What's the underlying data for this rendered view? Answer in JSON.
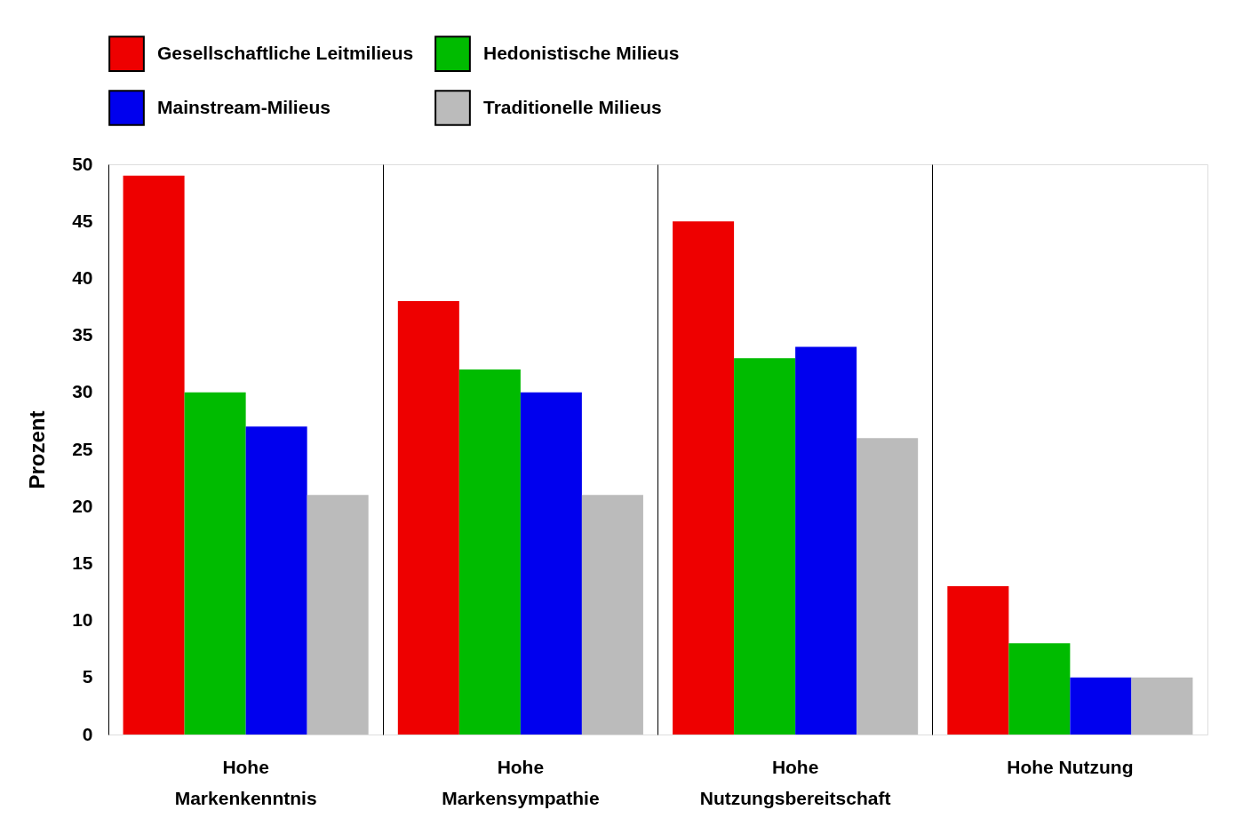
{
  "chart_data": {
    "type": "bar",
    "ylabel": "Prozent",
    "categories": [
      "Hohe\nMarkenkenntnis",
      "Hohe\nMarkensympathie",
      "Hohe\nNutzungsbereitschaft",
      "Hohe Nutzung"
    ],
    "series": [
      {
        "name": "Gesellschaftliche Leitmilieus",
        "color": "#ee0000",
        "values": [
          49,
          38,
          45,
          13
        ]
      },
      {
        "name": "Hedonistische Milieus",
        "color": "#00bb00",
        "values": [
          30,
          32,
          33,
          8
        ]
      },
      {
        "name": "Mainstream-Milieus",
        "color": "#0000ee",
        "values": [
          27,
          30,
          34,
          5
        ]
      },
      {
        "name": "Traditionelle Milieus",
        "color": "#bbbbbb",
        "values": [
          21,
          21,
          26,
          5
        ]
      }
    ],
    "ylim": [
      0,
      50
    ],
    "yticks": [
      0,
      5,
      10,
      15,
      20,
      25,
      30,
      35,
      40,
      45,
      50
    ],
    "grid": "x",
    "legend": "top"
  }
}
